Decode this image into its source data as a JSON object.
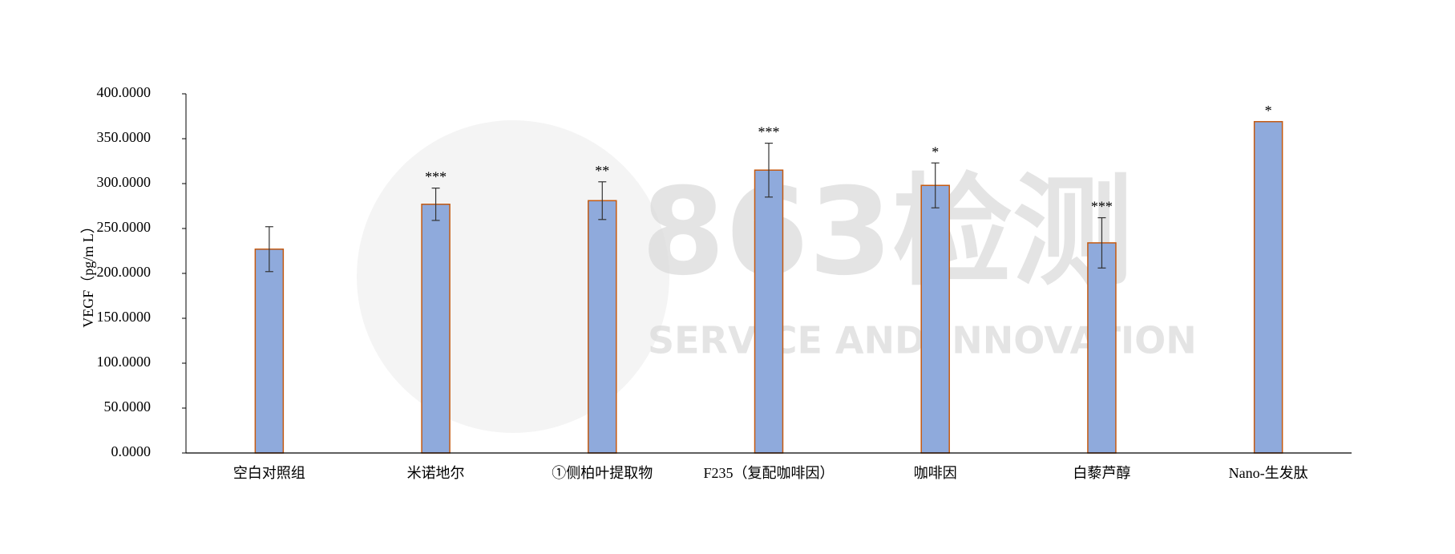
{
  "chart_data": {
    "type": "bar",
    "y_label": "VEGF（pg/m L）",
    "categories": [
      "空白对照组",
      "米诺地尔",
      "①侧柏叶提取物",
      "F235（复配咖啡因）",
      "咖啡因",
      "白藜芦醇",
      "Nano-生发肽"
    ],
    "values": [
      227,
      277,
      281,
      315,
      298,
      234,
      369
    ],
    "errors": [
      25,
      18,
      21,
      30,
      25,
      28,
      null
    ],
    "annotations": [
      null,
      "***",
      "**",
      "***",
      "*",
      "***",
      "*"
    ],
    "color": "#8faadc",
    "edge_color": "#c55a11",
    "ylim": [
      0,
      400
    ],
    "yticks": [
      {
        "value": 0,
        "label": "0.0000"
      },
      {
        "value": 50,
        "label": "50.0000"
      },
      {
        "value": 100,
        "label": "100.0000"
      },
      {
        "value": 150,
        "label": "150.0000"
      },
      {
        "value": 200,
        "label": "200.0000"
      },
      {
        "value": 250,
        "label": "250.0000"
      },
      {
        "value": 300,
        "label": "300.0000"
      },
      {
        "value": 350,
        "label": "350.0000"
      },
      {
        "value": 400,
        "label": "400.0000"
      }
    ],
    "grid": false,
    "watermark": [
      "863检测",
      "SERVICE AND INNOVATION"
    ]
  }
}
